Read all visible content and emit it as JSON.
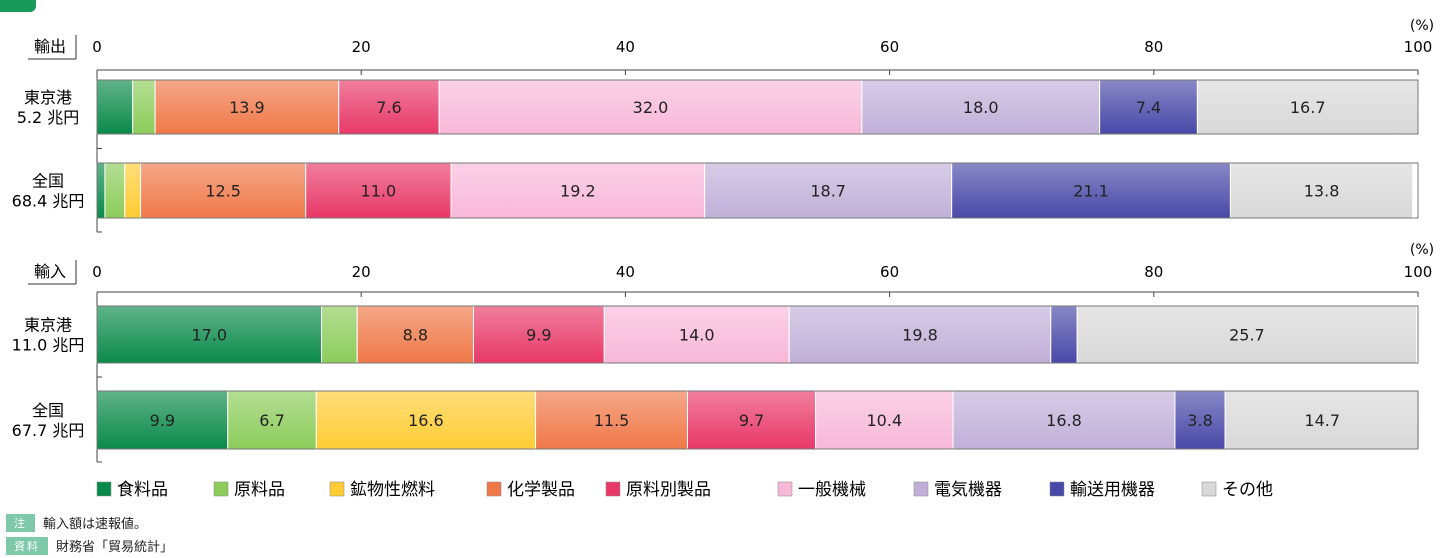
{
  "units": "(%)",
  "colors": {
    "食料品": "#0a8a4a",
    "原料品": "#8ccc5a",
    "鉱物性燃料": "#ffcc33",
    "化学製品": "#f07848",
    "原料別製品": "#e83868",
    "一般機械": "#f8b8d8",
    "電気機器": "#c0b0d8",
    "輸送用機器": "#4848a8",
    "その他": "#d8d8d8"
  },
  "legend": [
    {
      "name": "食料品",
      "color": "#0a8a4a"
    },
    {
      "name": "原料品",
      "color": "#8ccc5a"
    },
    {
      "name": "鉱物性燃料",
      "color": "#ffcc33"
    },
    {
      "name": "化学製品",
      "color": "#f07848"
    },
    {
      "name": "原料別製品",
      "color": "#e83868"
    },
    {
      "name": "一般機械",
      "color": "#f8b8d8"
    },
    {
      "name": "電気機器",
      "color": "#c0b0d8"
    },
    {
      "name": "輸送用機器",
      "color": "#4848a8"
    },
    {
      "name": "その他",
      "color": "#d8d8d8"
    }
  ],
  "notes": {
    "note_tag": "注",
    "note_text": "輸入額は速報値。",
    "source_tag": "資料",
    "source_text": "財務省「貿易統計」"
  },
  "chart_data": [
    {
      "type": "bar",
      "orientation": "horizontal",
      "stacked": true,
      "title": "輸出",
      "xlim": [
        0,
        100
      ],
      "ticks": [
        0,
        20,
        40,
        60,
        80,
        100
      ],
      "unit_label": "(%)",
      "series_order": [
        "食料品",
        "原料品",
        "鉱物性燃料",
        "化学製品",
        "原料別製品",
        "一般機械",
        "電気機器",
        "輸送用機器",
        "その他"
      ],
      "rows": [
        {
          "label1": "東京港",
          "label2": "5.2 兆円",
          "values": [
            2.7,
            1.7,
            0.0,
            13.9,
            7.6,
            32.0,
            18.0,
            7.4,
            16.7
          ],
          "labels": [
            "",
            "",
            "",
            "13.9",
            "7.6",
            "32.0",
            "18.0",
            "7.4",
            "16.7"
          ]
        },
        {
          "label1": "全国",
          "label2": "68.4 兆円",
          "values": [
            0.6,
            1.5,
            1.2,
            12.5,
            11.0,
            19.2,
            18.7,
            21.1,
            13.8
          ],
          "labels": [
            "",
            "",
            "",
            "12.5",
            "11.0",
            "19.2",
            "18.7",
            "21.1",
            "13.8"
          ]
        }
      ]
    },
    {
      "type": "bar",
      "orientation": "horizontal",
      "stacked": true,
      "title": "輸入",
      "xlim": [
        0,
        100
      ],
      "ticks": [
        0,
        20,
        40,
        60,
        80,
        100
      ],
      "unit_label": "(%)",
      "series_order": [
        "食料品",
        "原料品",
        "鉱物性燃料",
        "化学製品",
        "原料別製品",
        "一般機械",
        "電気機器",
        "輸送用機器",
        "その他"
      ],
      "rows": [
        {
          "label1": "東京港",
          "label2": "11.0 兆円",
          "values": [
            17.0,
            2.7,
            0.0,
            8.8,
            9.9,
            14.0,
            19.8,
            2.0,
            25.7
          ],
          "labels": [
            "17.0",
            "",
            "",
            "8.8",
            "9.9",
            "14.0",
            "19.8",
            "",
            "25.7"
          ]
        },
        {
          "label1": "全国",
          "label2": "67.7 兆円",
          "values": [
            9.9,
            6.7,
            16.6,
            11.5,
            9.7,
            10.4,
            16.8,
            3.8,
            14.7
          ],
          "labels": [
            "9.9",
            "6.7",
            "16.6",
            "11.5",
            "9.7",
            "10.4",
            "16.8",
            "3.8",
            "14.7"
          ]
        }
      ]
    }
  ]
}
